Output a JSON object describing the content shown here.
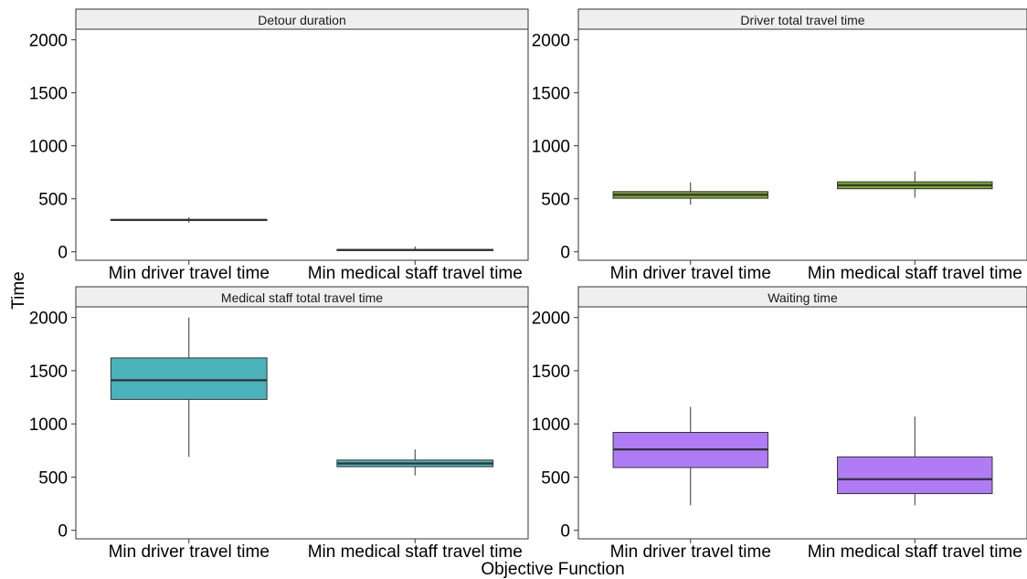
{
  "chart_data": {
    "type": "box",
    "layout": "facet grid 2x2",
    "xlabel": "Objective Function",
    "ylabel": "Time",
    "ylim": [
      -80,
      2100
    ],
    "yticks": [
      0,
      500,
      1000,
      1500,
      2000
    ],
    "categories": [
      "Min driver travel time",
      "Min medical staff travel time"
    ],
    "grid": false,
    "panels": [
      {
        "title": "Detour duration",
        "color": "#e05a5a",
        "boxes": [
          {
            "category": "Min driver travel time",
            "min": 275,
            "q1": 297,
            "median": 300,
            "q3": 305,
            "max": 325
          },
          {
            "category": "Min medical staff travel time",
            "min": 10,
            "q1": 12,
            "median": 17,
            "q3": 22,
            "max": 50
          }
        ]
      },
      {
        "title": "Driver total travel time",
        "color": "#7ca52e",
        "boxes": [
          {
            "category": "Min driver travel time",
            "min": 445,
            "q1": 505,
            "median": 538,
            "q3": 568,
            "max": 655
          },
          {
            "category": "Min medical staff travel time",
            "min": 510,
            "q1": 595,
            "median": 628,
            "q3": 660,
            "max": 760
          }
        ]
      },
      {
        "title": "Medical staff total travel time",
        "color": "#4ab3bc",
        "boxes": [
          {
            "category": "Min driver travel time",
            "min": 690,
            "q1": 1230,
            "median": 1410,
            "q3": 1620,
            "max": 2000
          },
          {
            "category": "Min medical staff travel time",
            "min": 515,
            "q1": 598,
            "median": 628,
            "q3": 660,
            "max": 760
          }
        ]
      },
      {
        "title": "Waiting time",
        "color": "#b07cf5",
        "boxes": [
          {
            "category": "Min driver travel time",
            "min": 235,
            "q1": 590,
            "median": 760,
            "q3": 920,
            "max": 1160
          },
          {
            "category": "Min medical staff travel time",
            "min": 235,
            "q1": 345,
            "median": 480,
            "q3": 690,
            "max": 1070
          }
        ]
      }
    ]
  }
}
